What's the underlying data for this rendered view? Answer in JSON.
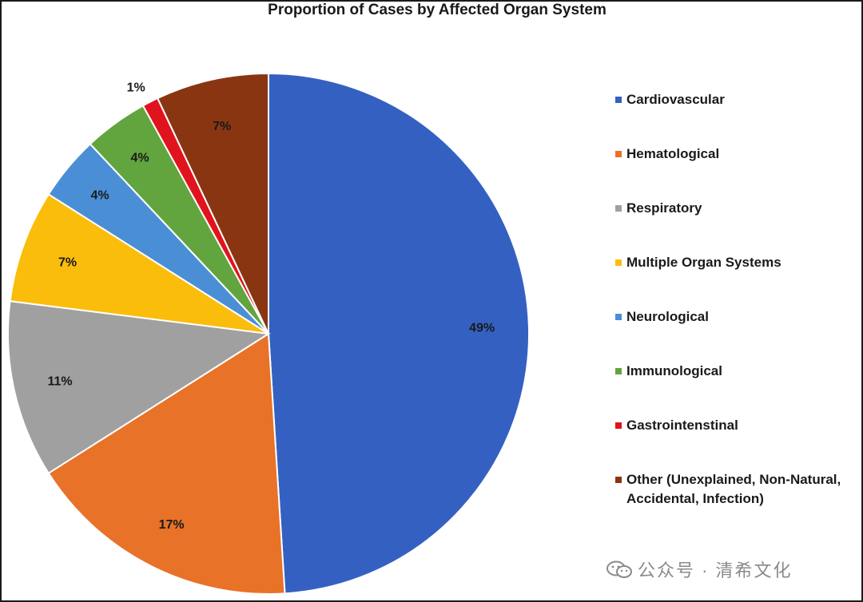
{
  "chart_data": {
    "type": "pie",
    "title": "Proportion of Cases by Affected Organ System",
    "slices": [
      {
        "label": "Cardiovascular",
        "value": 49,
        "value_label": "49%",
        "color": "#3461c1"
      },
      {
        "label": "Hematological",
        "value": 17,
        "value_label": "17%",
        "color": "#e87228"
      },
      {
        "label": "Respiratory",
        "value": 11,
        "value_label": "11%",
        "color": "#a0a0a0"
      },
      {
        "label": "Multiple Organ Systems",
        "value": 7,
        "value_label": "7%",
        "color": "#fbbd0b"
      },
      {
        "label": "Neurological",
        "value": 4,
        "value_label": "4%",
        "color": "#4a8fd6"
      },
      {
        "label": "Immunological",
        "value": 4,
        "value_label": "4%",
        "color": "#62a43d"
      },
      {
        "label": "Gastrointenstinal",
        "value": 1,
        "value_label": "1%",
        "color": "#e0141e"
      },
      {
        "label": "Other (Unexplained, Non-Natural, Accidental, Infection)",
        "value": 7,
        "value_label": "7%",
        "color": "#8a3512"
      }
    ],
    "legend_position": "right",
    "start_angle": "12 o'clock",
    "direction": "clockwise"
  },
  "watermark": {
    "text": "公众号 · 清希文化",
    "icon": "wechat-icon"
  }
}
